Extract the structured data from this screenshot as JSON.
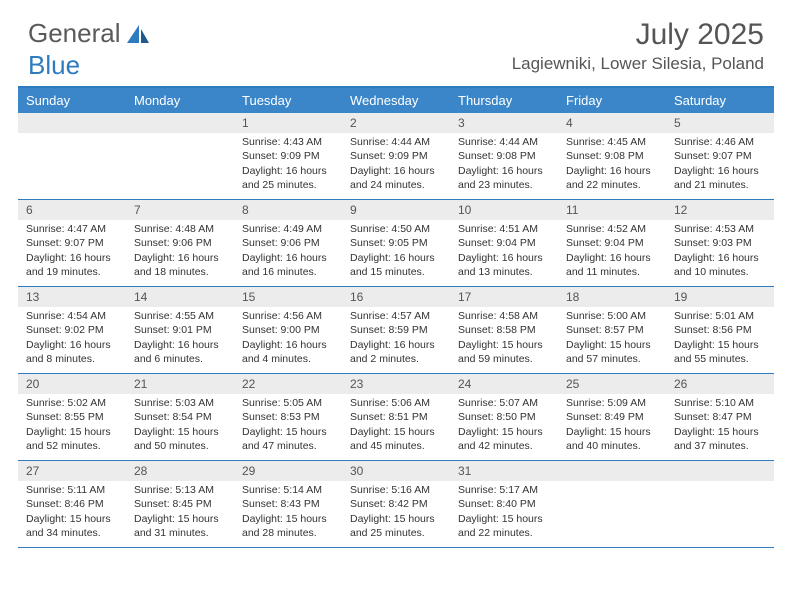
{
  "logo": {
    "text1": "General",
    "text2": "Blue"
  },
  "title": "July 2025",
  "location": "Lagiewniki, Lower Silesia, Poland",
  "colors": {
    "header_bg": "#3b86c8",
    "border": "#2f7bbf",
    "daynum_bg": "#ececec",
    "text": "#333333"
  },
  "day_names": [
    "Sunday",
    "Monday",
    "Tuesday",
    "Wednesday",
    "Thursday",
    "Friday",
    "Saturday"
  ],
  "weeks": [
    [
      null,
      null,
      {
        "n": "1",
        "sr": "4:43 AM",
        "ss": "9:09 PM",
        "dl": "16 hours and 25 minutes."
      },
      {
        "n": "2",
        "sr": "4:44 AM",
        "ss": "9:09 PM",
        "dl": "16 hours and 24 minutes."
      },
      {
        "n": "3",
        "sr": "4:44 AM",
        "ss": "9:08 PM",
        "dl": "16 hours and 23 minutes."
      },
      {
        "n": "4",
        "sr": "4:45 AM",
        "ss": "9:08 PM",
        "dl": "16 hours and 22 minutes."
      },
      {
        "n": "5",
        "sr": "4:46 AM",
        "ss": "9:07 PM",
        "dl": "16 hours and 21 minutes."
      }
    ],
    [
      {
        "n": "6",
        "sr": "4:47 AM",
        "ss": "9:07 PM",
        "dl": "16 hours and 19 minutes."
      },
      {
        "n": "7",
        "sr": "4:48 AM",
        "ss": "9:06 PM",
        "dl": "16 hours and 18 minutes."
      },
      {
        "n": "8",
        "sr": "4:49 AM",
        "ss": "9:06 PM",
        "dl": "16 hours and 16 minutes."
      },
      {
        "n": "9",
        "sr": "4:50 AM",
        "ss": "9:05 PM",
        "dl": "16 hours and 15 minutes."
      },
      {
        "n": "10",
        "sr": "4:51 AM",
        "ss": "9:04 PM",
        "dl": "16 hours and 13 minutes."
      },
      {
        "n": "11",
        "sr": "4:52 AM",
        "ss": "9:04 PM",
        "dl": "16 hours and 11 minutes."
      },
      {
        "n": "12",
        "sr": "4:53 AM",
        "ss": "9:03 PM",
        "dl": "16 hours and 10 minutes."
      }
    ],
    [
      {
        "n": "13",
        "sr": "4:54 AM",
        "ss": "9:02 PM",
        "dl": "16 hours and 8 minutes."
      },
      {
        "n": "14",
        "sr": "4:55 AM",
        "ss": "9:01 PM",
        "dl": "16 hours and 6 minutes."
      },
      {
        "n": "15",
        "sr": "4:56 AM",
        "ss": "9:00 PM",
        "dl": "16 hours and 4 minutes."
      },
      {
        "n": "16",
        "sr": "4:57 AM",
        "ss": "8:59 PM",
        "dl": "16 hours and 2 minutes."
      },
      {
        "n": "17",
        "sr": "4:58 AM",
        "ss": "8:58 PM",
        "dl": "15 hours and 59 minutes."
      },
      {
        "n": "18",
        "sr": "5:00 AM",
        "ss": "8:57 PM",
        "dl": "15 hours and 57 minutes."
      },
      {
        "n": "19",
        "sr": "5:01 AM",
        "ss": "8:56 PM",
        "dl": "15 hours and 55 minutes."
      }
    ],
    [
      {
        "n": "20",
        "sr": "5:02 AM",
        "ss": "8:55 PM",
        "dl": "15 hours and 52 minutes."
      },
      {
        "n": "21",
        "sr": "5:03 AM",
        "ss": "8:54 PM",
        "dl": "15 hours and 50 minutes."
      },
      {
        "n": "22",
        "sr": "5:05 AM",
        "ss": "8:53 PM",
        "dl": "15 hours and 47 minutes."
      },
      {
        "n": "23",
        "sr": "5:06 AM",
        "ss": "8:51 PM",
        "dl": "15 hours and 45 minutes."
      },
      {
        "n": "24",
        "sr": "5:07 AM",
        "ss": "8:50 PM",
        "dl": "15 hours and 42 minutes."
      },
      {
        "n": "25",
        "sr": "5:09 AM",
        "ss": "8:49 PM",
        "dl": "15 hours and 40 minutes."
      },
      {
        "n": "26",
        "sr": "5:10 AM",
        "ss": "8:47 PM",
        "dl": "15 hours and 37 minutes."
      }
    ],
    [
      {
        "n": "27",
        "sr": "5:11 AM",
        "ss": "8:46 PM",
        "dl": "15 hours and 34 minutes."
      },
      {
        "n": "28",
        "sr": "5:13 AM",
        "ss": "8:45 PM",
        "dl": "15 hours and 31 minutes."
      },
      {
        "n": "29",
        "sr": "5:14 AM",
        "ss": "8:43 PM",
        "dl": "15 hours and 28 minutes."
      },
      {
        "n": "30",
        "sr": "5:16 AM",
        "ss": "8:42 PM",
        "dl": "15 hours and 25 minutes."
      },
      {
        "n": "31",
        "sr": "5:17 AM",
        "ss": "8:40 PM",
        "dl": "15 hours and 22 minutes."
      },
      null,
      null
    ]
  ],
  "labels": {
    "sunrise": "Sunrise:",
    "sunset": "Sunset:",
    "daylight": "Daylight:"
  }
}
